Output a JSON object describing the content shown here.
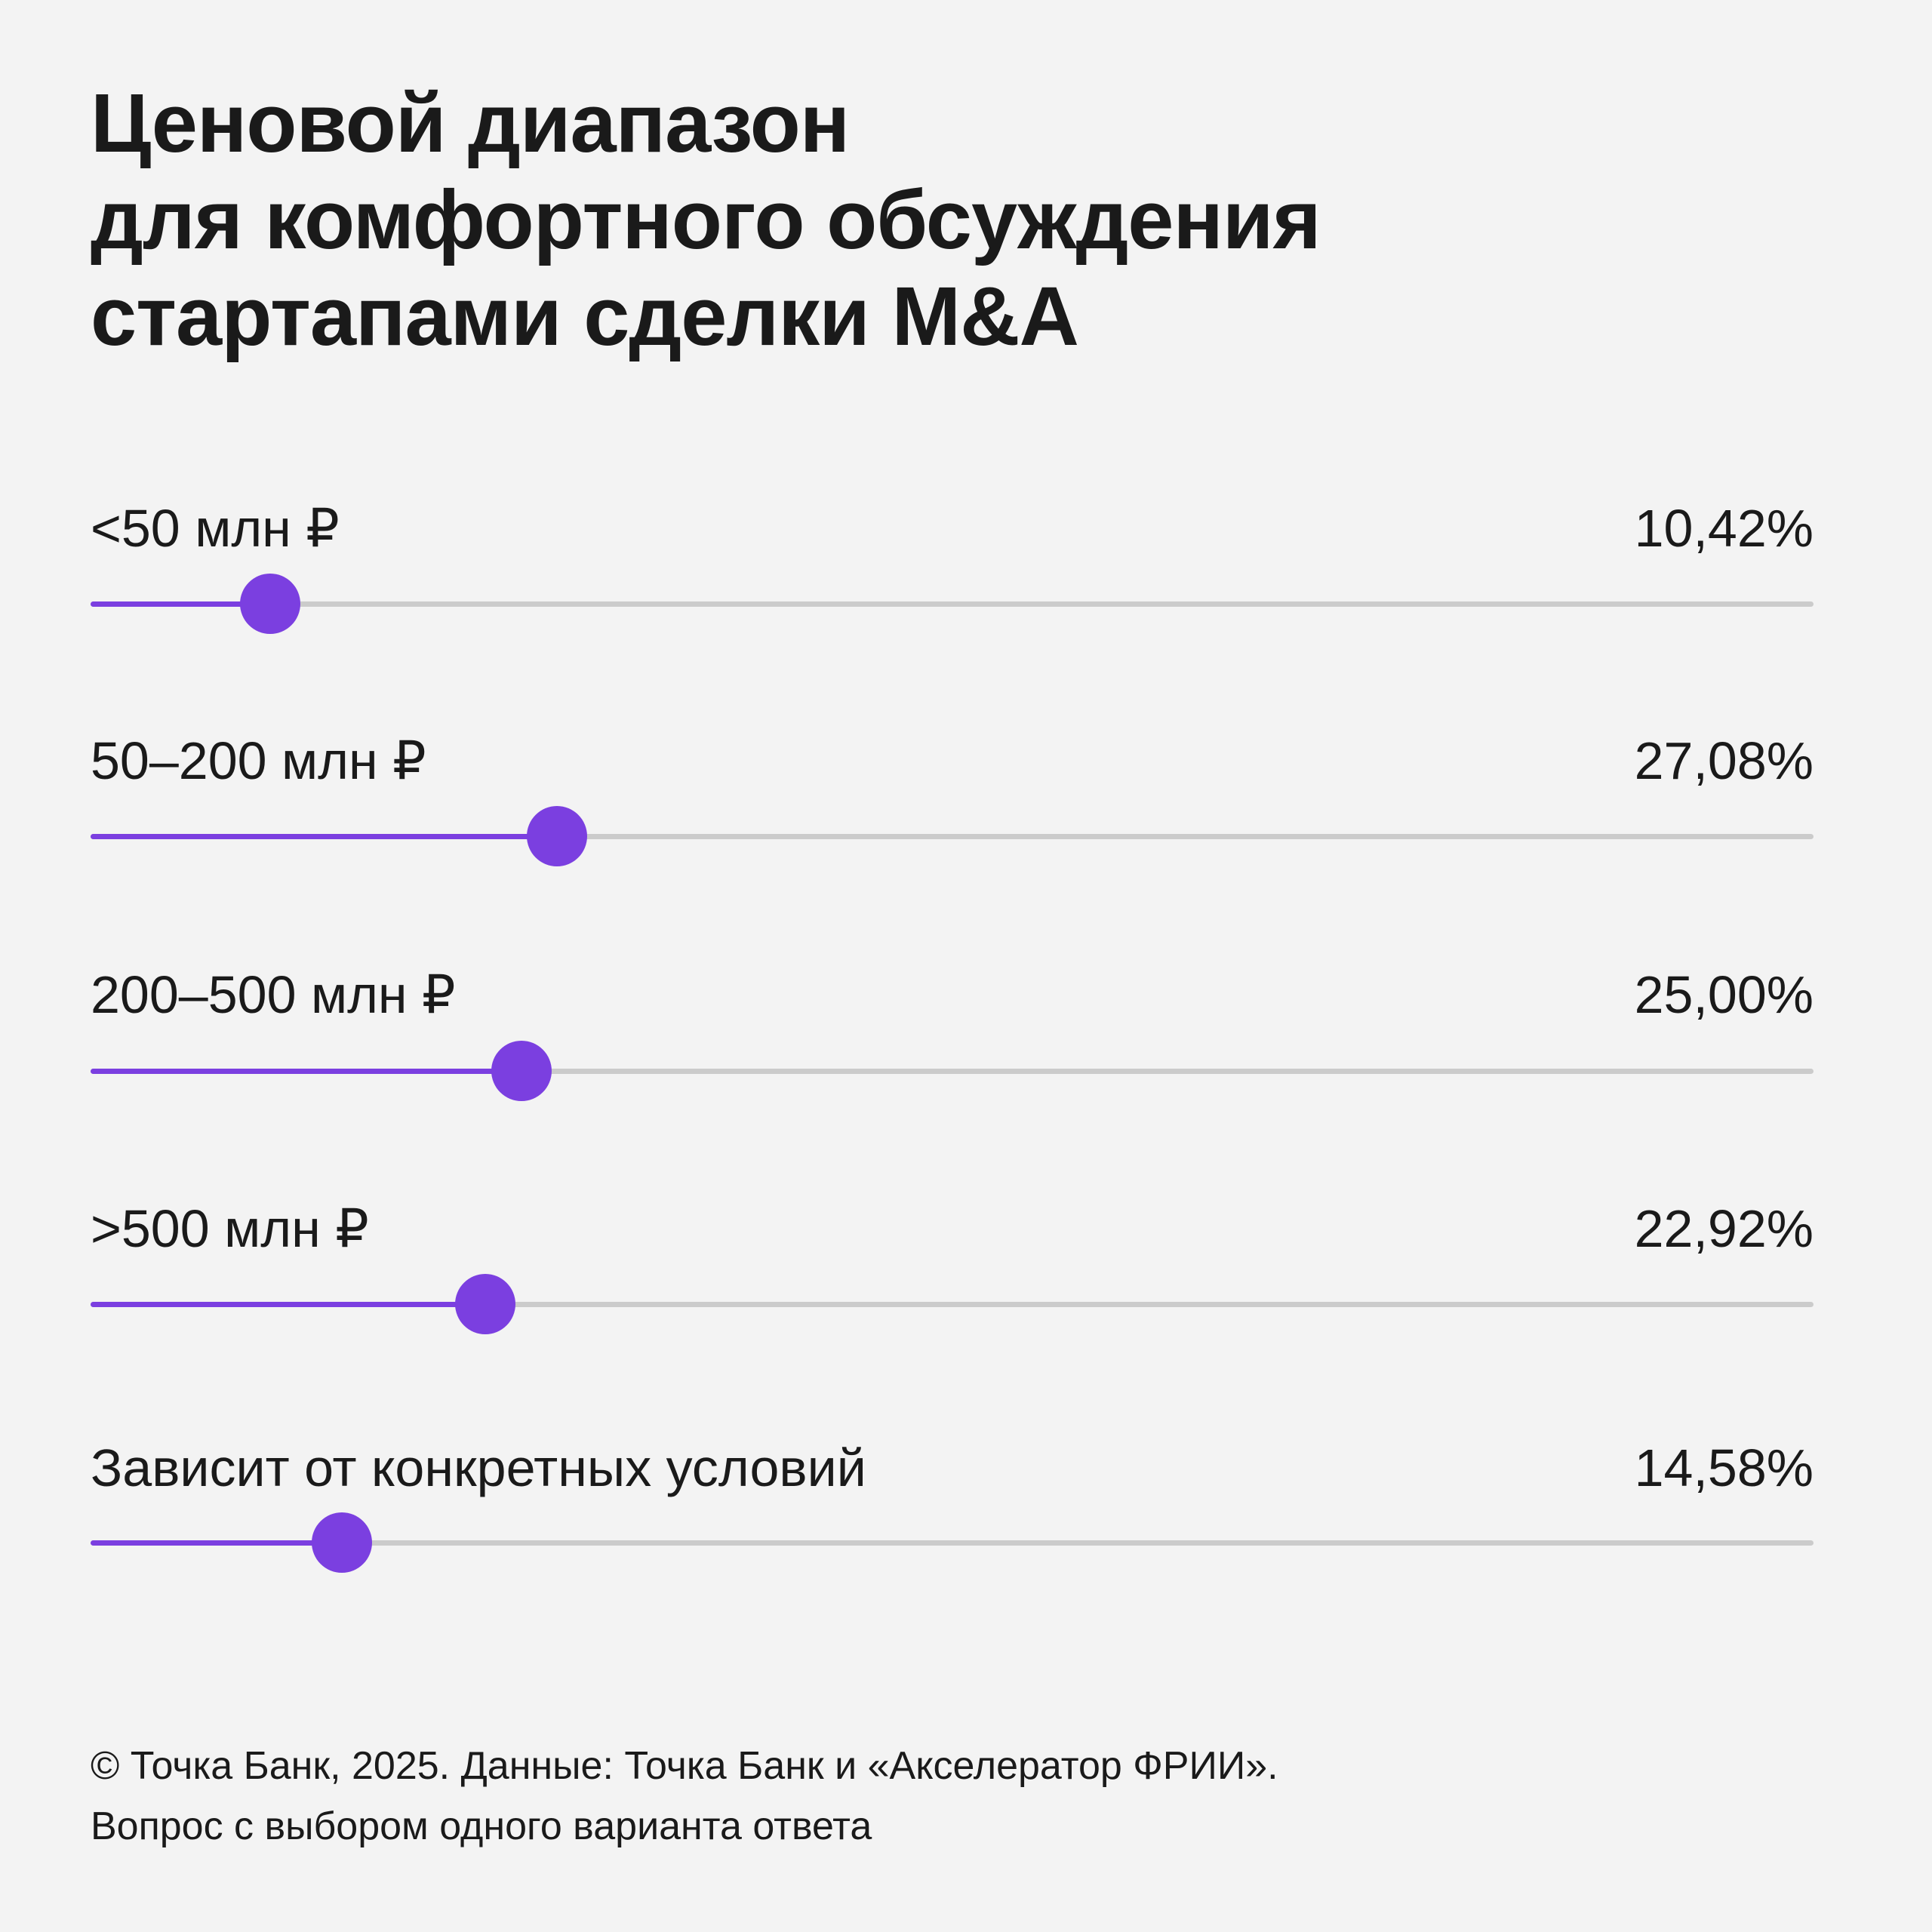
{
  "title_lines": [
    "Ценовой диапазон",
    "для комфортного обсуждения",
    "стартапами сделки M&A"
  ],
  "chart_data": {
    "type": "bar",
    "title": "Ценовой диапазон для комфортного обсуждения стартапами сделки M&A",
    "categories": [
      "<50 млн ₽",
      "50–200 млн ₽",
      "200–500 млн ₽",
      ">500 млн ₽",
      "Зависит от конкретных условий"
    ],
    "values": [
      10.42,
      27.08,
      25.0,
      22.92,
      14.58
    ],
    "value_labels": [
      "10,42%",
      "27,08%",
      "25,00%",
      "22,92%",
      "14,58%"
    ],
    "unit": "%",
    "ylim": [
      0,
      100
    ],
    "grid": false,
    "colors": {
      "fill": "#7b3fe0",
      "track": "#cbcbcb",
      "background": "#f3f3f3"
    }
  },
  "footer": {
    "line1": "© Точка Банк, 2025. Данные: Точка Банк и «Акселератор ФРИИ».",
    "line2": "Вопрос с выбором одного варианта ответа"
  }
}
